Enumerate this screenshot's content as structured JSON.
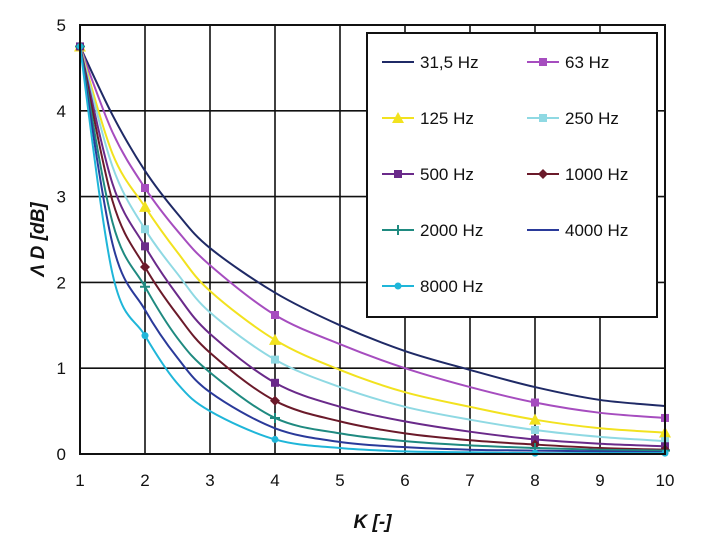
{
  "chart_data": {
    "type": "line",
    "title": "",
    "xlabel": "K [-]",
    "ylabel": "Λ D [dB]",
    "xlim": [
      1,
      10
    ],
    "ylim": [
      0,
      5
    ],
    "xticks": [
      1,
      2,
      3,
      4,
      5,
      6,
      7,
      8,
      9,
      10
    ],
    "yticks": [
      0,
      1,
      2,
      3,
      4,
      5
    ],
    "grid": true,
    "legend_position": "top-right",
    "series": [
      {
        "name": "31,5 Hz",
        "color": "#1f2a66",
        "marker": "none",
        "x": [
          1,
          1.5,
          2,
          2.5,
          3,
          4,
          5,
          6,
          7,
          8,
          9,
          10
        ],
        "y": [
          4.75,
          3.95,
          3.3,
          2.8,
          2.4,
          1.88,
          1.5,
          1.2,
          0.98,
          0.78,
          0.63,
          0.56
        ]
      },
      {
        "name": "63 Hz",
        "color": "#a64dbf",
        "marker": "square",
        "x": [
          1,
          1.5,
          2,
          2.5,
          3,
          4,
          5,
          6,
          7,
          8,
          9,
          10
        ],
        "y": [
          4.75,
          3.75,
          3.1,
          2.6,
          2.2,
          1.62,
          1.28,
          1.0,
          0.78,
          0.6,
          0.48,
          0.42
        ]
      },
      {
        "name": "125 Hz",
        "color": "#f2e21f",
        "marker": "triangle",
        "x": [
          1,
          1.5,
          2,
          2.5,
          3,
          4,
          5,
          6,
          7,
          8,
          9,
          10
        ],
        "y": [
          4.75,
          3.5,
          2.88,
          2.35,
          1.9,
          1.33,
          0.98,
          0.72,
          0.55,
          0.4,
          0.3,
          0.25
        ]
      },
      {
        "name": "250 Hz",
        "color": "#8fd9e3",
        "marker": "square",
        "x": [
          1,
          1.5,
          2,
          2.5,
          3,
          4,
          5,
          6,
          7,
          8,
          9,
          10
        ],
        "y": [
          4.75,
          3.35,
          2.62,
          2.1,
          1.65,
          1.1,
          0.78,
          0.55,
          0.4,
          0.28,
          0.2,
          0.15
        ]
      },
      {
        "name": "500 Hz",
        "color": "#6a2a8a",
        "marker": "square",
        "x": [
          1,
          1.5,
          2,
          2.5,
          3,
          4,
          5,
          6,
          7,
          8,
          9,
          10
        ],
        "y": [
          4.75,
          3.15,
          2.42,
          1.85,
          1.4,
          0.83,
          0.55,
          0.38,
          0.26,
          0.17,
          0.12,
          0.09
        ]
      },
      {
        "name": "1000 Hz",
        "color": "#6b1a2a",
        "marker": "diamond",
        "x": [
          1,
          1.5,
          2,
          2.5,
          3,
          4,
          5,
          6,
          7,
          8,
          9,
          10
        ],
        "y": [
          4.75,
          2.95,
          2.18,
          1.62,
          1.18,
          0.62,
          0.38,
          0.24,
          0.16,
          0.11,
          0.07,
          0.05
        ]
      },
      {
        "name": "2000 Hz",
        "color": "#1f8a80",
        "marker": "plus",
        "x": [
          1,
          1.5,
          2,
          2.5,
          3,
          4,
          5,
          6,
          7,
          8,
          9,
          10
        ],
        "y": [
          4.75,
          2.7,
          1.95,
          1.35,
          0.95,
          0.42,
          0.24,
          0.15,
          0.1,
          0.07,
          0.05,
          0.04
        ]
      },
      {
        "name": "4000 Hz",
        "color": "#2a3a9a",
        "marker": "none",
        "x": [
          1,
          1.5,
          2,
          2.5,
          3,
          4,
          5,
          6,
          7,
          8,
          9,
          10
        ],
        "y": [
          4.75,
          2.45,
          1.68,
          1.12,
          0.72,
          0.3,
          0.14,
          0.08,
          0.05,
          0.04,
          0.03,
          0.02
        ]
      },
      {
        "name": "8000 Hz",
        "color": "#1fb6d9",
        "marker": "circle",
        "x": [
          1,
          1.5,
          2,
          2.5,
          3,
          4,
          5,
          6,
          7,
          8,
          9,
          10
        ],
        "y": [
          4.75,
          2.1,
          1.38,
          0.82,
          0.5,
          0.17,
          0.07,
          0.03,
          0.02,
          0.01,
          0.01,
          0.01
        ]
      }
    ]
  }
}
